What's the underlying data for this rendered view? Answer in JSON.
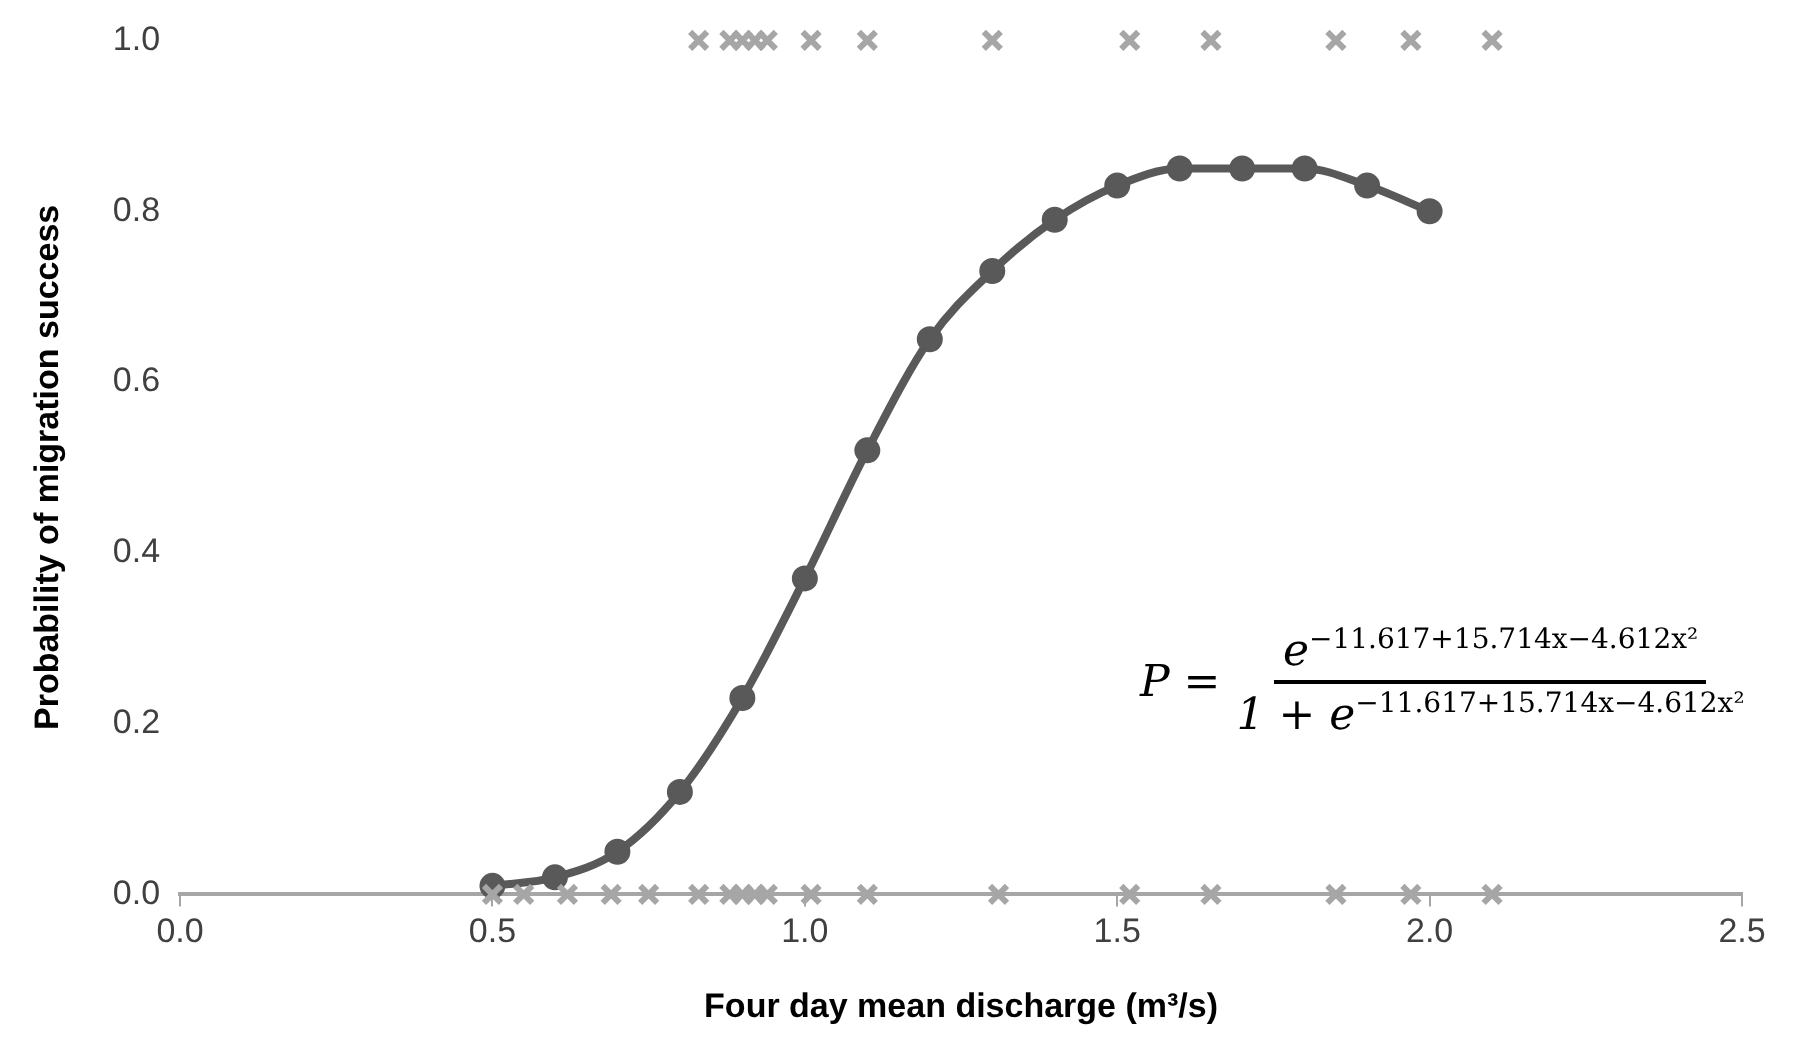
{
  "chart_data": {
    "type": "scatter",
    "xlabel": "Four day mean discharge (m³/s)",
    "ylabel": "Probability of migration success",
    "xlim": [
      0,
      2.5
    ],
    "xticks": [
      {
        "value": 0,
        "label": "0.0"
      },
      {
        "value": 0.5,
        "label": "0.5"
      },
      {
        "value": 1,
        "label": "1.0"
      },
      {
        "value": 1.5,
        "label": "1.5"
      },
      {
        "value": 2,
        "label": "2.0"
      },
      {
        "value": 2.5,
        "label": "2.5"
      }
    ],
    "ylim": [
      0,
      1
    ],
    "yticks": [
      {
        "value": 0,
        "label": "0.0"
      },
      {
        "value": 0.2,
        "label": "0.2"
      },
      {
        "value": 0.4,
        "label": "0.4"
      },
      {
        "value": 0.6,
        "label": "0.6"
      },
      {
        "value": 0.8,
        "label": "0.8"
      },
      {
        "value": 1,
        "label": "1.0"
      }
    ],
    "grid": false,
    "legend": false,
    "series": [
      {
        "marker": "cross",
        "color": "#a6a6a6",
        "x": [
          0.83,
          0.88,
          0.9,
          0.92,
          0.94,
          1.01,
          1.1,
          1.3,
          1.52,
          1.65,
          1.85,
          1.97,
          2.1
        ],
        "values": [
          1,
          1,
          1,
          1,
          1,
          1,
          1,
          1,
          1,
          1,
          1,
          1,
          1
        ]
      },
      {
        "marker": "cross",
        "color": "#a6a6a6",
        "x": [
          0.5,
          0.55,
          0.62,
          0.69,
          0.75,
          0.83,
          0.88,
          0.9,
          0.92,
          0.94,
          1.01,
          1.1,
          1.31,
          1.52,
          1.65,
          1.85,
          1.97,
          2.1
        ],
        "values": [
          0,
          0,
          0,
          0,
          0,
          0,
          0,
          0,
          0,
          0,
          0,
          0,
          0,
          0,
          0,
          0,
          0,
          0
        ]
      },
      {
        "type": "line",
        "marker": "circle",
        "line_style": "solid",
        "color": "#595959",
        "x": [
          0.5,
          0.6,
          0.7,
          0.8,
          0.9,
          1.0,
          1.1,
          1.2,
          1.3,
          1.4,
          1.5,
          1.6,
          1.7,
          1.8,
          1.9,
          2.0
        ],
        "values": [
          0.01,
          0.02,
          0.05,
          0.12,
          0.23,
          0.37,
          0.52,
          0.65,
          0.73,
          0.79,
          0.83,
          0.85,
          0.85,
          0.85,
          0.83,
          0.8
        ]
      }
    ],
    "annotations": [
      "P =",
      "e$^{−11.617+15.714x−4.612x²}$",
      "1 + e$^{−11.617+15.714x−4.612x²}$"
    ]
  }
}
